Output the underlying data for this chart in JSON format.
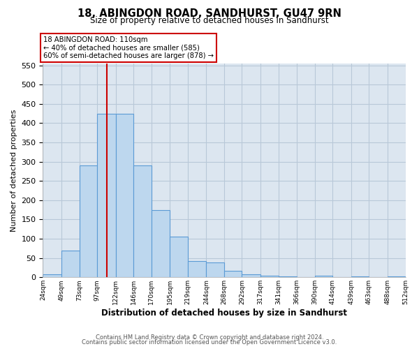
{
  "title": "18, ABINGDON ROAD, SANDHURST, GU47 9RN",
  "subtitle": "Size of property relative to detached houses in Sandhurst",
  "xlabel": "Distribution of detached houses by size in Sandhurst",
  "ylabel": "Number of detached properties",
  "bar_color": "#bdd7ee",
  "bar_edge_color": "#5b9bd5",
  "background_color": "#ffffff",
  "plot_bg_color": "#dce6f0",
  "grid_color": "#b8c8d8",
  "vline_x": 110,
  "vline_color": "#cc0000",
  "bin_edges": [
    24,
    49,
    73,
    97,
    122,
    146,
    170,
    195,
    219,
    244,
    268,
    292,
    317,
    341,
    366,
    390,
    414,
    439,
    463,
    488,
    512
  ],
  "bin_labels": [
    "24sqm",
    "49sqm",
    "73sqm",
    "97sqm",
    "122sqm",
    "146sqm",
    "170sqm",
    "195sqm",
    "219sqm",
    "244sqm",
    "268sqm",
    "292sqm",
    "317sqm",
    "341sqm",
    "366sqm",
    "390sqm",
    "414sqm",
    "439sqm",
    "463sqm",
    "488sqm",
    "512sqm"
  ],
  "counts": [
    7,
    70,
    290,
    425,
    425,
    290,
    175,
    105,
    43,
    38,
    16,
    7,
    4,
    2,
    0,
    4,
    0,
    2,
    0,
    3
  ],
  "annotation_title": "18 ABINGDON ROAD: 110sqm",
  "annotation_line1": "← 40% of detached houses are smaller (585)",
  "annotation_line2": "60% of semi-detached houses are larger (878) →",
  "annotation_box_edge": "#cc0000",
  "ylim": [
    0,
    555
  ],
  "yticks": [
    0,
    50,
    100,
    150,
    200,
    250,
    300,
    350,
    400,
    450,
    500,
    550
  ],
  "footer1": "Contains HM Land Registry data © Crown copyright and database right 2024.",
  "footer2": "Contains public sector information licensed under the Open Government Licence v3.0."
}
